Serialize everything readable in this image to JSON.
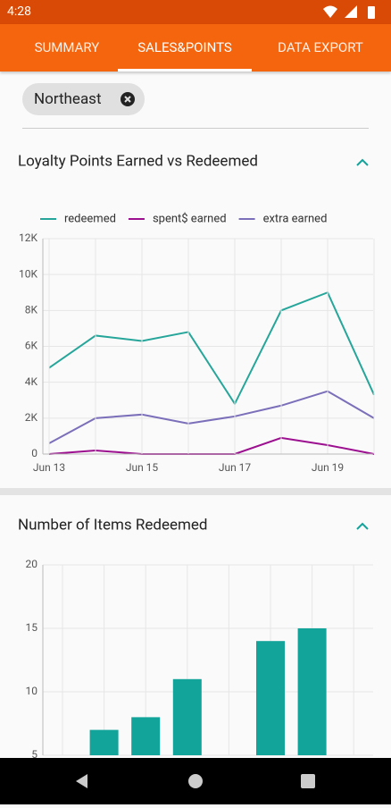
{
  "status_bar": {
    "time": "4:28"
  },
  "tabs": [
    "SUMMARY",
    "SALES&POINTS",
    "DATA EXPORT"
  ],
  "filter_chip": "Northeast",
  "chart_data": [
    {
      "type": "line",
      "title": "Loyalty Points Earned vs Redeemed",
      "categories": [
        "Jun 13",
        null,
        "Jun 15",
        null,
        "Jun 17",
        null,
        "Jun 19",
        null
      ],
      "series": [
        {
          "name": "redeemed",
          "color": "#26a69a",
          "values": [
            4800,
            6600,
            6300,
            6800,
            2800,
            8000,
            9000,
            3300
          ]
        },
        {
          "name": "spent$ earned",
          "color": "#9c1090",
          "values": [
            0,
            200,
            0,
            0,
            0,
            900,
            500,
            0
          ]
        },
        {
          "name": "extra earned",
          "color": "#7b6fba",
          "values": [
            600,
            2000,
            2200,
            1700,
            2100,
            2700,
            3500,
            2000
          ]
        }
      ],
      "ylim": [
        0,
        12000
      ],
      "yticks": [
        0,
        {
          "value": 2000,
          "label": "2K"
        },
        {
          "value": 4000,
          "label": "4K"
        },
        {
          "value": 6000,
          "label": "6K"
        },
        {
          "value": 8000,
          "label": "8K"
        },
        {
          "value": 10000,
          "label": "10K"
        },
        {
          "value": 12000,
          "label": "12K"
        }
      ],
      "grid": true,
      "legend": "top"
    },
    {
      "type": "bar",
      "title": "Number of Items Redeemed",
      "values": [
        null,
        7,
        8,
        11,
        null,
        14,
        15,
        null
      ],
      "color": "#12a39a",
      "ylim": [
        5,
        20
      ],
      "yticks": [
        5,
        10,
        15,
        20
      ],
      "grid": true
    }
  ]
}
